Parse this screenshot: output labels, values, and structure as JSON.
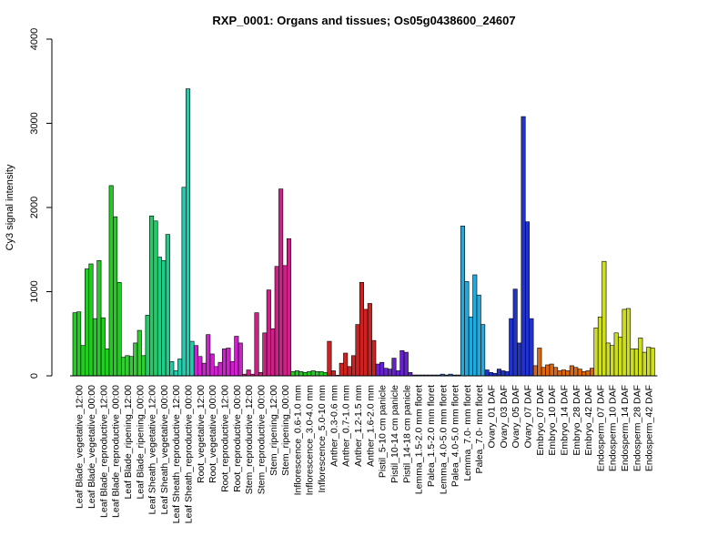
{
  "chart_data": {
    "type": "bar",
    "title": "RXP_0001: Organs and tissues; Os05g0438600_24607",
    "xlabel": "",
    "ylabel": "Cy3 signal intensity",
    "ylim": [
      0,
      4000
    ],
    "yticks": [
      0,
      1000,
      2000,
      3000,
      4000
    ],
    "grid": false,
    "groups": [
      {
        "label": "Leaf Blade_vegetative_12:00",
        "color": "#22cc22",
        "values": [
          750,
          760,
          360
        ]
      },
      {
        "label": "Leaf Blade_vegetative_00:00",
        "color": "#22cc22",
        "values": [
          1270,
          1330,
          680
        ]
      },
      {
        "label": "Leaf Blade_reproductive_12:00",
        "color": "#22cc22",
        "values": [
          1370,
          690,
          320
        ]
      },
      {
        "label": "Leaf Blade_reproductive_00:00",
        "color": "#22cc22",
        "values": [
          2260,
          1890,
          1110
        ]
      },
      {
        "label": "Leaf Blade_ripening_12:00",
        "color": "#33cc33",
        "values": [
          220,
          240,
          230
        ]
      },
      {
        "label": "Leaf Blade_ripening_00:00",
        "color": "#33cc33",
        "values": [
          390,
          540,
          240
        ]
      },
      {
        "label": "Leaf Sheath_vegetative_12:00",
        "color": "#22cc66",
        "values": [
          720,
          1900,
          1840
        ]
      },
      {
        "label": "Leaf Sheath_vegetative_00:00",
        "color": "#22cc88",
        "values": [
          1410,
          1370,
          1680
        ]
      },
      {
        "label": "Leaf Sheath_reproductive_12:00",
        "color": "#22ccaa",
        "values": [
          170,
          60,
          200
        ]
      },
      {
        "label": "Leaf Sheath_reproductive_00:00",
        "color": "#22ccaa",
        "values": [
          2240,
          3410,
          410
        ]
      },
      {
        "label": "Root_vegetative_12:00",
        "color": "#cc22cc",
        "values": [
          360,
          230,
          150
        ]
      },
      {
        "label": "Root_vegetative_00:00",
        "color": "#cc22cc",
        "values": [
          490,
          260,
          110
        ]
      },
      {
        "label": "Root_reproductive_12:00",
        "color": "#cc22cc",
        "values": [
          160,
          320,
          330
        ]
      },
      {
        "label": "Root_reproductive_00:00",
        "color": "#cc22cc",
        "values": [
          170,
          470,
          390
        ]
      },
      {
        "label": "Stem_reproductive_12:00",
        "color": "#cc2288",
        "values": [
          20,
          70,
          20
        ]
      },
      {
        "label": "Stem_reproductive_00:00",
        "color": "#cc2288",
        "values": [
          750,
          40,
          510
        ]
      },
      {
        "label": "Stem_ripening_12:00",
        "color": "#cc2288",
        "values": [
          1020,
          560,
          1300
        ]
      },
      {
        "label": "Stem_ripening_00:00",
        "color": "#cc2288",
        "values": [
          2220,
          1310,
          1630
        ]
      },
      {
        "label": "Inflorescence_0.6-1.0 mm",
        "color": "#22cc22",
        "values": [
          50,
          60,
          50
        ]
      },
      {
        "label": "Inflorescence_3.0-4.0 mm",
        "color": "#22cc22",
        "values": [
          40,
          50,
          60
        ]
      },
      {
        "label": "Inflorescence_5.0-10 mm",
        "color": "#22cc22",
        "values": [
          50,
          50,
          40
        ]
      },
      {
        "label": "Anther_0.3-0.6 mm",
        "color": "#cc2222",
        "values": [
          410,
          60,
          0
        ]
      },
      {
        "label": "Anther_0.7-1.0 mm",
        "color": "#cc2222",
        "values": [
          150,
          270,
          110
        ]
      },
      {
        "label": "Anther_1.2-1.5 mm",
        "color": "#cc2222",
        "values": [
          240,
          610,
          1110
        ]
      },
      {
        "label": "Anther_1.6-2.0 mm",
        "color": "#cc2222",
        "values": [
          790,
          860,
          420
        ]
      },
      {
        "label": "Pistil_5-10 cm panicle",
        "color": "#6622cc",
        "values": [
          140,
          160,
          90
        ]
      },
      {
        "label": "Pistil_10-14 cm panicle",
        "color": "#6622cc",
        "values": [
          80,
          210,
          60
        ]
      },
      {
        "label": "Pistil_14-18 cm panicle",
        "color": "#6622cc",
        "values": [
          300,
          280,
          40
        ]
      },
      {
        "label": "Lemma_1.5-2.0 mm floret",
        "color": "#2266cc",
        "values": [
          10,
          10,
          10
        ]
      },
      {
        "label": "Palea_1.5-2.0 mm floret",
        "color": "#2266cc",
        "values": [
          10,
          10,
          10
        ]
      },
      {
        "label": "Lemma_4.0-5.0 mm floret",
        "color": "#2266cc",
        "values": [
          10,
          20,
          10
        ]
      },
      {
        "label": "Palea_4.0-5.0 mm floret",
        "color": "#2266cc",
        "values": [
          20,
          10,
          10
        ]
      },
      {
        "label": "Lemma_7.0- mm floret",
        "color": "#22aadd",
        "values": [
          1780,
          1120,
          700
        ]
      },
      {
        "label": "Palea_7.0- mm floret",
        "color": "#22aadd",
        "values": [
          1200,
          960,
          610
        ]
      },
      {
        "label": "Ovary_01 DAF",
        "color": "#2233cc",
        "values": [
          70,
          40,
          30
        ]
      },
      {
        "label": "Ovary_03 DAF",
        "color": "#2233cc",
        "values": [
          80,
          60,
          50
        ]
      },
      {
        "label": "Ovary_05 DAF",
        "color": "#2233cc",
        "values": [
          680,
          1030,
          390
        ]
      },
      {
        "label": "Ovary_07 DAF",
        "color": "#2233cc",
        "values": [
          3080,
          1830,
          680
        ]
      },
      {
        "label": "Embryo_07 DAF",
        "color": "#dd6611",
        "values": [
          120,
          330,
          100
        ]
      },
      {
        "label": "Embryo_10 DAF",
        "color": "#dd6611",
        "values": [
          130,
          140,
          100
        ]
      },
      {
        "label": "Embryo_14 DAF",
        "color": "#dd6611",
        "values": [
          60,
          70,
          60
        ]
      },
      {
        "label": "Embryo_28 DAF",
        "color": "#dd6611",
        "values": [
          120,
          100,
          80
        ]
      },
      {
        "label": "Embryo_42 DAF",
        "color": "#dd6611",
        "values": [
          50,
          60,
          90
        ]
      },
      {
        "label": "Endosperm_07 DAF",
        "color": "#ccdd22",
        "values": [
          570,
          700,
          1360
        ]
      },
      {
        "label": "Endosperm_10 DAF",
        "color": "#ccdd22",
        "values": [
          390,
          360,
          510
        ]
      },
      {
        "label": "Endosperm_14 DAF",
        "color": "#ccdd22",
        "values": [
          460,
          790,
          800
        ]
      },
      {
        "label": "Endosperm_28 DAF",
        "color": "#ccdd22",
        "values": [
          320,
          320,
          450
        ]
      },
      {
        "label": "Endosperm_42 DAF",
        "color": "#ccdd22",
        "values": [
          280,
          340,
          330
        ]
      }
    ]
  }
}
